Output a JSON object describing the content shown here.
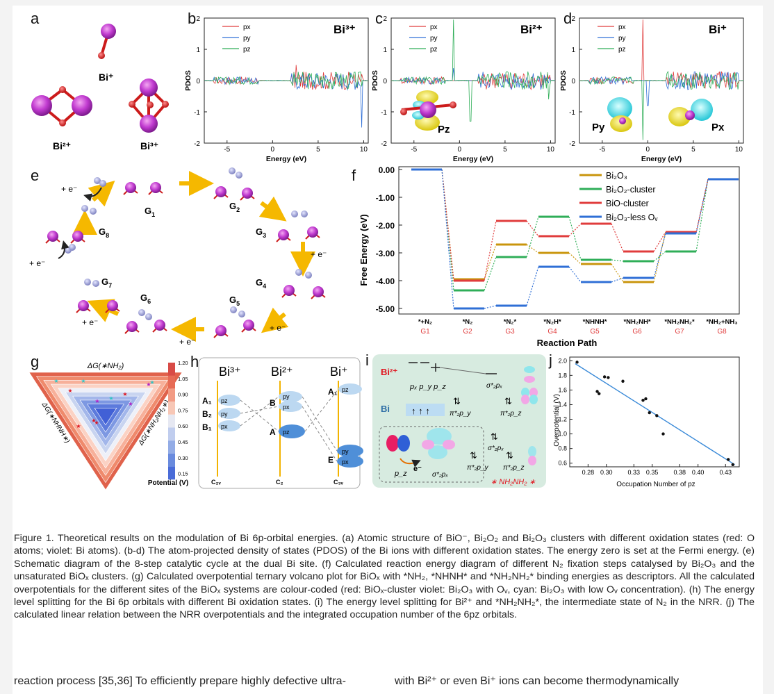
{
  "figure": {
    "panel_letters": [
      "a",
      "b",
      "c",
      "d",
      "e",
      "f",
      "g",
      "h",
      "i",
      "j"
    ],
    "panel_a": {
      "labels": [
        "Bi⁺",
        "Bi²⁺",
        "Bi³⁺"
      ]
    },
    "pdos": {
      "ylabel": "PDOS",
      "xlabel": "Energy (eV)",
      "xticks": [
        "-5",
        "0",
        "5",
        "10"
      ],
      "yticks": [
        "2",
        "1",
        "0",
        "-1",
        "-2"
      ],
      "legend": [
        "px",
        "py",
        "pz"
      ],
      "titles": [
        "Bi³⁺",
        "Bi²⁺",
        "Bi⁺"
      ],
      "insets": {
        "c": [
          "Pz"
        ],
        "d": [
          "Py",
          "Px"
        ]
      },
      "colors": {
        "px": "#e03c3c",
        "py": "#2f6fd6",
        "pz": "#2fae58"
      }
    },
    "panel_e": {
      "steps": [
        "G1",
        "G2",
        "G3",
        "G4",
        "G5",
        "G6",
        "G7",
        "G8"
      ],
      "electron_labels": [
        "+ e⁻"
      ],
      "arrow_color": "#f5b800"
    },
    "chart_data": {
      "type": "line",
      "ylabel": "Free Energy (eV)",
      "xlabel": "Reaction Path",
      "ylim": [
        -5.2,
        0.1
      ],
      "yticks": [
        "0.00",
        "-1.00",
        "-2.00",
        "-3.00",
        "-4.00",
        "-5.00"
      ],
      "categories": [
        "*+N2",
        "*N2",
        "*N2*",
        "*N2H*",
        "*NHNH*",
        "*NH2NH*",
        "*NH2NH2*",
        "*NH2+NH3"
      ],
      "category_labels": [
        "*+N₂",
        "*N₂",
        "*N₂*",
        "*N₂H*",
        "*NHNH*",
        "*NH₂NH*",
        "*NH₂NH₂*",
        "*NH₂+NH₃"
      ],
      "steps": [
        "G1",
        "G2",
        "G3",
        "G4",
        "G5",
        "G6",
        "G7",
        "G8"
      ],
      "series": [
        {
          "name": "Bi₂O₃",
          "color": "#c9950c",
          "values": [
            0,
            -3.95,
            -2.7,
            -3.0,
            -3.4,
            -4.05,
            -2.25,
            -0.35
          ]
        },
        {
          "name": "Bi₂O₂-cluster",
          "color": "#2fae58",
          "values": [
            0,
            -4.35,
            -3.15,
            -1.7,
            -3.25,
            -3.3,
            -2.95,
            -0.35
          ]
        },
        {
          "name": "BiO-cluster",
          "color": "#e03c3c",
          "values": [
            0,
            -4.0,
            -1.85,
            -2.4,
            -1.95,
            -2.95,
            -2.25,
            -0.35
          ]
        },
        {
          "name": "Bi₂O₃-less Oᵥ",
          "color": "#2f6fd6",
          "values": [
            0,
            -5.0,
            -4.9,
            -3.5,
            -4.05,
            -3.9,
            -2.3,
            -0.35
          ]
        }
      ]
    },
    "panel_g": {
      "axis_labels": [
        "ΔG(∗NH₂)",
        "ΔG(∗NHNH∗)",
        "ΔG(∗NH₂NH₂∗)"
      ],
      "colorbar_ticks": [
        "1.20",
        "1.05",
        "0.90",
        "0.75",
        "0.60",
        "0.45",
        "0.30",
        "0.15"
      ],
      "colorbar_label": "Potential (V)"
    },
    "panel_h": {
      "columns": [
        "Bi³⁺",
        "Bi²⁺",
        "Bi⁺"
      ],
      "symmetry": [
        "C₂ᵥ",
        "C₂",
        "C₃ᵥ"
      ],
      "levels": {
        "c1": [
          "A₁",
          "B₂",
          "B₁"
        ],
        "c1_orbitals": [
          "pz",
          "py",
          "px"
        ],
        "c2": [
          "B",
          "A"
        ],
        "c2_orbitals": [
          "py",
          "px",
          "pz"
        ],
        "c3": [
          "A₁",
          "E"
        ],
        "c3_orbitals": [
          "pz",
          "py",
          "px"
        ]
      }
    },
    "panel_i": {
      "labels": [
        "Bi²⁺",
        "Bi",
        "pₓ p_y p_z",
        "σ*₂pₓ",
        "π*₂p_y",
        "π*₂p_z",
        "σ*₂pₓ",
        "π*₂p_y",
        "π*₂p_z",
        "p_z",
        "e⁻",
        "σ*₂pₓ",
        "∗ NH₂NH₂ ∗"
      ]
    },
    "panel_j": {
      "ylabel": "Overpotential (V)",
      "xlabel": "Occupation Number of pz",
      "xticks": [
        "0.28",
        "0.30",
        "0.33",
        "0.35",
        "0.38",
        "0.40",
        "0.43"
      ],
      "yticks": [
        "2.0",
        "1.8",
        "1.6",
        "1.4",
        "1.2",
        "1.0",
        "0.8",
        "0.6"
      ],
      "points": [
        [
          0.268,
          1.98
        ],
        [
          0.29,
          1.58
        ],
        [
          0.292,
          1.55
        ],
        [
          0.298,
          1.78
        ],
        [
          0.302,
          1.77
        ],
        [
          0.318,
          1.72
        ],
        [
          0.34,
          1.46
        ],
        [
          0.343,
          1.48
        ],
        [
          0.347,
          1.29
        ],
        [
          0.355,
          1.25
        ],
        [
          0.362,
          1.0
        ],
        [
          0.433,
          0.65
        ],
        [
          0.438,
          0.58
        ]
      ],
      "fit": [
        [
          0.266,
          1.96
        ],
        [
          0.44,
          0.58
        ]
      ]
    }
  },
  "caption": "Figure 1. Theoretical results on the modulation of Bi 6p-orbital energies. (a) Atomic structure of BiO⁻, Bi₂O₂ and Bi₂O₃ clusters with different oxidation states (red: O atoms; violet: Bi atoms). (b-d) The atom-projected density of states (PDOS) of the Bi ions with different oxidation states. The energy zero is set at the Fermi energy. (e) Schematic diagram of the 8-step catalytic cycle at the dual Bi site. (f) Calculated reaction energy diagram of different N₂ fixation steps catalysed by Bi₂O₃ and the unsaturated BiOₓ clusters. (g) Calculated overpotential ternary volcano plot for BiOₓ with *NH₂, *NHNH* and *NH₂NH₂* binding energies as descriptors. All the calculated overpotentials for the different sites of the BiOₓ systems are colour-coded (red: BiOₓ-cluster violet: Bi₂O₃ with Oᵥ, cyan: Bi₂O₃ with low Oᵥ concentration). (h) The energy level splitting for the Bi 6p orbitals with different Bi oxidation states. (i) The energy level splitting for Bi²⁺ and *NH₂NH₂*, the intermediate state of N₂ in the NRR. (j) The calculated linear relation between the NRR overpotentials and the integrated occupation number of the 6pz orbitals.",
  "body_text": {
    "left": "reaction process [35,36] To efficiently prepare highly defective ultra-",
    "right": "with Bi²⁺ or even Bi⁺ ions can become thermodynamically"
  }
}
